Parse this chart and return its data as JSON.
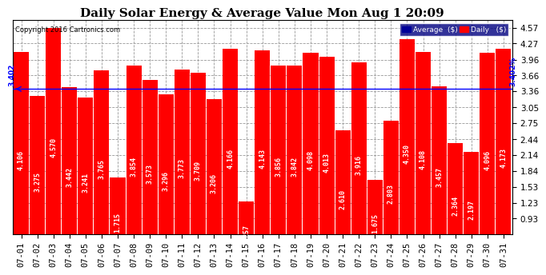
{
  "title": "Daily Solar Energy & Average Value Mon Aug 1 20:09",
  "copyright": "Copyright 2016 Cartronics.com",
  "categories": [
    "07-01",
    "07-02",
    "07-03",
    "07-04",
    "07-05",
    "07-06",
    "07-07",
    "07-08",
    "07-09",
    "07-10",
    "07-11",
    "07-12",
    "07-13",
    "07-14",
    "07-15",
    "07-16",
    "07-17",
    "07-18",
    "07-19",
    "07-20",
    "07-21",
    "07-22",
    "07-23",
    "07-24",
    "07-25",
    "07-26",
    "07-27",
    "07-28",
    "07-29",
    "07-30",
    "07-31"
  ],
  "values": [
    4.106,
    3.275,
    4.57,
    3.442,
    3.241,
    3.765,
    1.715,
    3.854,
    3.573,
    3.296,
    3.773,
    3.709,
    3.206,
    4.166,
    1.257,
    4.143,
    3.856,
    3.842,
    4.098,
    4.013,
    2.61,
    3.916,
    1.675,
    2.803,
    4.35,
    4.108,
    3.457,
    2.364,
    2.197,
    4.096,
    4.173
  ],
  "average": 3.402,
  "bar_color": "#ff0000",
  "avg_line_color": "#0000ff",
  "background_color": "#ffffff",
  "plot_bg_color": "#ffffff",
  "grid_color": "#999999",
  "title_fontsize": 11,
  "tick_fontsize": 7.5,
  "bar_label_fontsize": 6,
  "ylim_min": 0.63,
  "ylim_max": 4.72,
  "yticks": [
    0.93,
    1.23,
    1.53,
    1.84,
    2.14,
    2.44,
    2.75,
    3.05,
    3.36,
    3.66,
    3.96,
    4.27,
    4.57
  ],
  "legend_avg_color": "#000099",
  "legend_daily_color": "#ff0000",
  "legend_avg_label": "Average  ($)",
  "legend_daily_label": "Daily   ($)"
}
